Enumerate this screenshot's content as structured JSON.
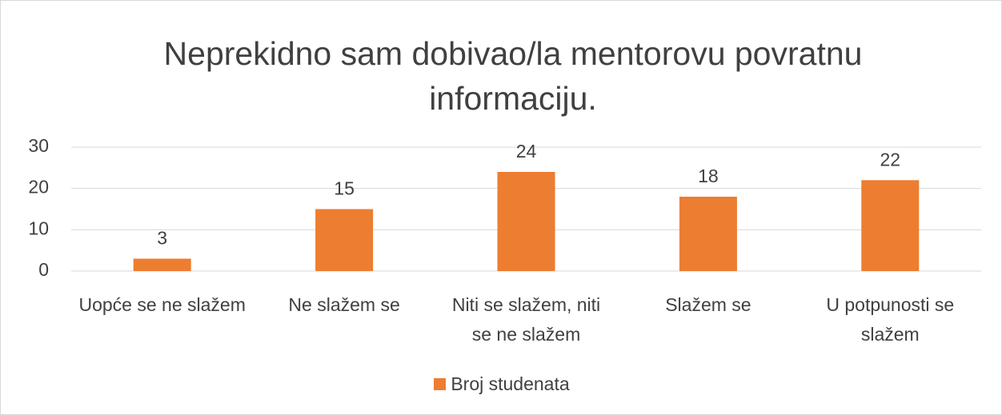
{
  "chart_data": {
    "type": "bar",
    "title": "Neprekidno sam dobivao/la mentorovu povratnu informaciju.",
    "categories": [
      "Uopće se ne slažem",
      "Ne slažem se",
      "Niti se slažem, niti se ne slažem",
      "Slažem se",
      "U potpunosti se slažem"
    ],
    "series": [
      {
        "name": "Broj studenata",
        "color": "#ed7d31",
        "values": [
          3,
          15,
          24,
          18,
          22
        ]
      }
    ],
    "ylim": [
      0,
      30
    ],
    "yticks": [
      0,
      10,
      20,
      30
    ],
    "grid": true,
    "legend": "bottom"
  }
}
